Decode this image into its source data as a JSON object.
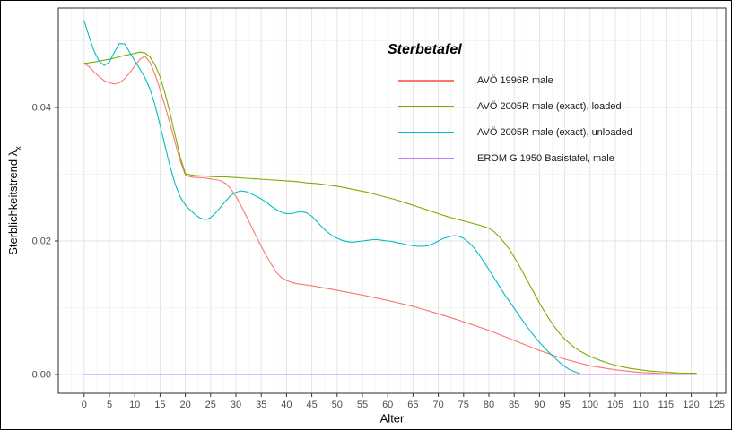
{
  "chart_data": {
    "type": "line",
    "legend_title": "Sterbetafel",
    "xlabel": "Alter",
    "ylabel": {
      "text": "Sterblichkeitstrend λ",
      "sub": "x"
    },
    "xlim": [
      -5.1,
      126.8
    ],
    "ylim": [
      -0.00282,
      0.0549
    ],
    "x_ticks": [
      0,
      5,
      10,
      15,
      20,
      25,
      30,
      35,
      40,
      45,
      50,
      55,
      60,
      65,
      70,
      75,
      80,
      85,
      90,
      95,
      100,
      105,
      110,
      115,
      120,
      125
    ],
    "y_ticks": [
      0,
      0.02,
      0.04
    ],
    "y_tick_labels": [
      "0.00",
      "0.02",
      "0.04"
    ],
    "grid": true,
    "legend_position": "inside-top-right",
    "colors": {
      "panel_border": "#2b2b2b",
      "grid_major": "#e4e4e4",
      "grid_minor": "#f2f2f2",
      "tick_label": "#4d4d4d"
    },
    "series": [
      {
        "name": "AVÖ 1996R male",
        "color": "#F8766D",
        "points": [
          [
            0,
            0.0466
          ],
          [
            1,
            0.0461
          ],
          [
            2,
            0.0453
          ],
          [
            3,
            0.0446
          ],
          [
            4,
            0.044
          ],
          [
            5,
            0.0437
          ],
          [
            6,
            0.0435
          ],
          [
            7,
            0.0437
          ],
          [
            8,
            0.0443
          ],
          [
            9,
            0.0452
          ],
          [
            10,
            0.0462
          ],
          [
            11,
            0.0472
          ],
          [
            12,
            0.0477
          ],
          [
            13,
            0.0468
          ],
          [
            14,
            0.045
          ],
          [
            15,
            0.0427
          ],
          [
            16,
            0.0402
          ],
          [
            17,
            0.0375
          ],
          [
            18,
            0.0347
          ],
          [
            19,
            0.032
          ],
          [
            20,
            0.0299
          ],
          [
            21,
            0.0296
          ],
          [
            22,
            0.0295
          ],
          [
            23,
            0.0295
          ],
          [
            24,
            0.0294
          ],
          [
            25,
            0.0293
          ],
          [
            26,
            0.0292
          ],
          [
            27,
            0.029
          ],
          [
            28,
            0.0286
          ],
          [
            29,
            0.0278
          ],
          [
            30,
            0.0267
          ],
          [
            31,
            0.0253
          ],
          [
            32,
            0.0238
          ],
          [
            33,
            0.0223
          ],
          [
            34,
            0.0207
          ],
          [
            35,
            0.0192
          ],
          [
            36,
            0.0178
          ],
          [
            37,
            0.0165
          ],
          [
            38,
            0.0153
          ],
          [
            39,
            0.0145
          ],
          [
            40,
            0.0141
          ],
          [
            41,
            0.0138
          ],
          [
            42,
            0.0136
          ],
          [
            43,
            0.0135
          ],
          [
            44,
            0.0134
          ],
          [
            45,
            0.0133
          ],
          [
            50,
            0.0126
          ],
          [
            55,
            0.0119
          ],
          [
            60,
            0.0111
          ],
          [
            65,
            0.0102
          ],
          [
            70,
            0.0091
          ],
          [
            75,
            0.0079
          ],
          [
            80,
            0.0066
          ],
          [
            85,
            0.0051
          ],
          [
            90,
            0.0036
          ],
          [
            95,
            0.0023
          ],
          [
            100,
            0.0013
          ],
          [
            105,
            0.0007
          ],
          [
            110,
            0.0003
          ],
          [
            115,
            0.0001
          ],
          [
            120,
            0.0001
          ]
        ]
      },
      {
        "name": "AVÖ 2005R male (exact), loaded",
        "color": "#7CAE00",
        "points": [
          [
            0,
            0.0466
          ],
          [
            2,
            0.0468
          ],
          [
            4,
            0.0471
          ],
          [
            6,
            0.0474
          ],
          [
            8,
            0.0478
          ],
          [
            10,
            0.0481
          ],
          [
            11,
            0.0483
          ],
          [
            12,
            0.0482
          ],
          [
            13,
            0.0476
          ],
          [
            14,
            0.0464
          ],
          [
            15,
            0.0446
          ],
          [
            16,
            0.0421
          ],
          [
            17,
            0.0391
          ],
          [
            18,
            0.0358
          ],
          [
            19,
            0.0326
          ],
          [
            20,
            0.0301
          ],
          [
            21,
            0.0299
          ],
          [
            22,
            0.0298
          ],
          [
            24,
            0.0297
          ],
          [
            26,
            0.0296
          ],
          [
            28,
            0.0296
          ],
          [
            30,
            0.0295
          ],
          [
            32,
            0.0294
          ],
          [
            34,
            0.0293
          ],
          [
            36,
            0.0292
          ],
          [
            38,
            0.0291
          ],
          [
            40,
            0.029
          ],
          [
            42,
            0.0289
          ],
          [
            44,
            0.0287
          ],
          [
            46,
            0.0286
          ],
          [
            48,
            0.0284
          ],
          [
            50,
            0.0282
          ],
          [
            52,
            0.0279
          ],
          [
            54,
            0.0276
          ],
          [
            56,
            0.0273
          ],
          [
            58,
            0.0269
          ],
          [
            60,
            0.0265
          ],
          [
            62,
            0.0261
          ],
          [
            64,
            0.0256
          ],
          [
            66,
            0.0251
          ],
          [
            68,
            0.0246
          ],
          [
            70,
            0.0241
          ],
          [
            72,
            0.0236
          ],
          [
            74,
            0.0232
          ],
          [
            76,
            0.0228
          ],
          [
            78,
            0.0224
          ],
          [
            80,
            0.0219
          ],
          [
            81,
            0.0214
          ],
          [
            82,
            0.0207
          ],
          [
            83,
            0.0198
          ],
          [
            84,
            0.0188
          ],
          [
            85,
            0.0176
          ],
          [
            86,
            0.0163
          ],
          [
            87,
            0.0149
          ],
          [
            88,
            0.0135
          ],
          [
            89,
            0.0121
          ],
          [
            90,
            0.0107
          ],
          [
            91,
            0.0094
          ],
          [
            92,
            0.0082
          ],
          [
            93,
            0.0071
          ],
          [
            94,
            0.0061
          ],
          [
            95,
            0.0053
          ],
          [
            96,
            0.0046
          ],
          [
            97,
            0.004
          ],
          [
            98,
            0.0035
          ],
          [
            99,
            0.0031
          ],
          [
            100,
            0.0027
          ],
          [
            102,
            0.0021
          ],
          [
            104,
            0.0016
          ],
          [
            106,
            0.0012
          ],
          [
            108,
            0.0009
          ],
          [
            110,
            0.0007
          ],
          [
            112,
            0.0005
          ],
          [
            114,
            0.0004
          ],
          [
            116,
            0.0003
          ],
          [
            118,
            0.0002
          ],
          [
            120,
            0.0002
          ],
          [
            121,
            0.0002
          ]
        ]
      },
      {
        "name": "AVÖ 2005R male (exact), unloaded",
        "color": "#00BFC4",
        "points": [
          [
            0,
            0.053
          ],
          [
            1,
            0.0506
          ],
          [
            2,
            0.0484
          ],
          [
            3,
            0.0469
          ],
          [
            4,
            0.0463
          ],
          [
            5,
            0.0468
          ],
          [
            6,
            0.0483
          ],
          [
            7,
            0.0496
          ],
          [
            8,
            0.0495
          ],
          [
            9,
            0.0483
          ],
          [
            10,
            0.047
          ],
          [
            11,
            0.0458
          ],
          [
            12,
            0.0445
          ],
          [
            13,
            0.0428
          ],
          [
            14,
            0.0404
          ],
          [
            15,
            0.0374
          ],
          [
            16,
            0.0342
          ],
          [
            17,
            0.0311
          ],
          [
            18,
            0.0285
          ],
          [
            19,
            0.0266
          ],
          [
            20,
            0.0254
          ],
          [
            21,
            0.0246
          ],
          [
            22,
            0.0239
          ],
          [
            23,
            0.0234
          ],
          [
            24,
            0.0232
          ],
          [
            25,
            0.0235
          ],
          [
            26,
            0.0242
          ],
          [
            27,
            0.0251
          ],
          [
            28,
            0.026
          ],
          [
            29,
            0.0268
          ],
          [
            30,
            0.0273
          ],
          [
            31,
            0.0275
          ],
          [
            32,
            0.0274
          ],
          [
            33,
            0.0271
          ],
          [
            34,
            0.0267
          ],
          [
            35,
            0.0263
          ],
          [
            36,
            0.0258
          ],
          [
            37,
            0.0252
          ],
          [
            38,
            0.0247
          ],
          [
            39,
            0.0243
          ],
          [
            40,
            0.0241
          ],
          [
            41,
            0.0241
          ],
          [
            42,
            0.0243
          ],
          [
            43,
            0.0244
          ],
          [
            44,
            0.0242
          ],
          [
            45,
            0.0237
          ],
          [
            46,
            0.0229
          ],
          [
            47,
            0.0221
          ],
          [
            48,
            0.0214
          ],
          [
            49,
            0.0208
          ],
          [
            50,
            0.0204
          ],
          [
            51,
            0.0201
          ],
          [
            52,
            0.0199
          ],
          [
            53,
            0.0198
          ],
          [
            54,
            0.0199
          ],
          [
            55,
            0.02
          ],
          [
            56,
            0.0201
          ],
          [
            57,
            0.0202
          ],
          [
            58,
            0.0202
          ],
          [
            59,
            0.0201
          ],
          [
            60,
            0.02
          ],
          [
            61,
            0.0199
          ],
          [
            62,
            0.0197
          ],
          [
            63,
            0.0196
          ],
          [
            64,
            0.0194
          ],
          [
            65,
            0.0193
          ],
          [
            66,
            0.0192
          ],
          [
            67,
            0.0192
          ],
          [
            68,
            0.0193
          ],
          [
            69,
            0.0196
          ],
          [
            70,
            0.02
          ],
          [
            71,
            0.0204
          ],
          [
            72,
            0.0206
          ],
          [
            73,
            0.0208
          ],
          [
            74,
            0.0207
          ],
          [
            75,
            0.0204
          ],
          [
            76,
            0.0198
          ],
          [
            77,
            0.019
          ],
          [
            78,
            0.018
          ],
          [
            79,
            0.0169
          ],
          [
            80,
            0.0157
          ],
          [
            81,
            0.0145
          ],
          [
            82,
            0.0133
          ],
          [
            83,
            0.0121
          ],
          [
            84,
            0.011
          ],
          [
            85,
            0.0099
          ],
          [
            86,
            0.0088
          ],
          [
            87,
            0.0077
          ],
          [
            88,
            0.0067
          ],
          [
            89,
            0.0057
          ],
          [
            90,
            0.0048
          ],
          [
            91,
            0.004
          ],
          [
            92,
            0.0032
          ],
          [
            93,
            0.0025
          ],
          [
            94,
            0.0018
          ],
          [
            95,
            0.0012
          ],
          [
            96,
            0.0007
          ],
          [
            97,
            0.0004
          ],
          [
            98,
            0.0001
          ],
          [
            99,
            0.0
          ],
          [
            100,
            0.0
          ],
          [
            105,
            0.0
          ],
          [
            110,
            0.0
          ],
          [
            115,
            0.0
          ],
          [
            120,
            0.0
          ]
        ]
      },
      {
        "name": "EROM G 1950 Basistafel, male",
        "color": "#C77CFF",
        "points": [
          [
            0,
            0.0
          ],
          [
            20,
            0.0
          ],
          [
            40,
            0.0
          ],
          [
            60,
            0.0
          ],
          [
            80,
            0.0
          ],
          [
            100,
            0.0
          ],
          [
            121,
            0.0
          ]
        ]
      }
    ]
  }
}
